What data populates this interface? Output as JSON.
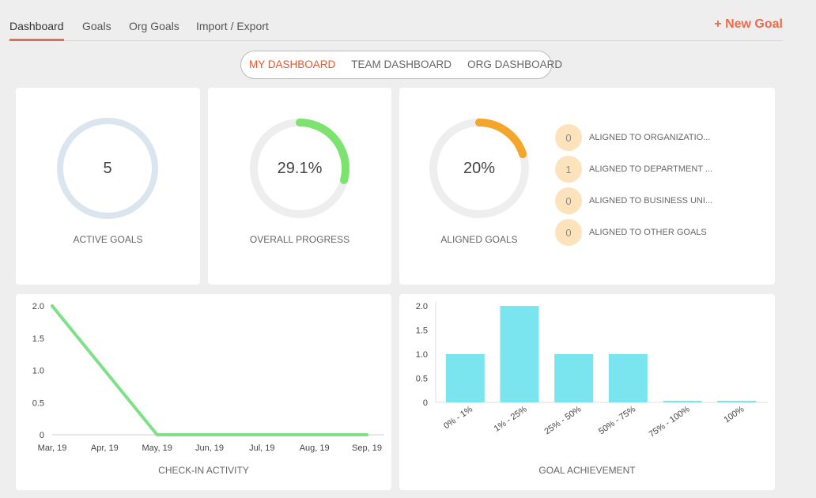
{
  "nav": {
    "tabs": [
      {
        "label": "Dashboard",
        "active": true
      },
      {
        "label": "Goals",
        "active": false
      },
      {
        "label": "Org Goals",
        "active": false
      },
      {
        "label": "Import / Export",
        "active": false
      }
    ],
    "new_goal": "+ New Goal"
  },
  "dashboard_switch": {
    "items": [
      "MY DASHBOARD",
      "TEAM DASHBOARD",
      "ORG DASHBOARD"
    ],
    "active": "MY DASHBOARD"
  },
  "active_goals": {
    "value": "5",
    "label": "ACTIVE GOALS"
  },
  "overall_progress": {
    "value": "29.1%",
    "fraction": 0.291,
    "label": "OVERALL PROGRESS",
    "color": "#7ce36f"
  },
  "aligned_goals": {
    "value": "20%",
    "fraction": 0.2,
    "label": "ALIGNED GOALS",
    "color": "#f5a52a",
    "items": [
      {
        "count": "0",
        "label": "ALIGNED TO ORGANIZATIO..."
      },
      {
        "count": "1",
        "label": "ALIGNED TO DEPARTMENT ..."
      },
      {
        "count": "0",
        "label": "ALIGNED TO BUSINESS UNI..."
      },
      {
        "count": "0",
        "label": "ALIGNED TO OTHER GOALS"
      }
    ]
  },
  "colors": {
    "accent": "#ee6a4c",
    "ring_track": "#eeeeee",
    "active_ring": "#dbe5ef",
    "line": "#7ee087",
    "bar": "#7ae5ee"
  },
  "chart_data": [
    {
      "type": "line",
      "xlabel": "CHECK-IN ACTIVITY",
      "categories": [
        "Mar, 19",
        "Apr, 19",
        "May, 19",
        "Jun, 19",
        "Jul, 19",
        "Aug, 19",
        "Sep, 19"
      ],
      "values": [
        2,
        1,
        0,
        0,
        0,
        0,
        0
      ],
      "ylim": [
        0,
        2
      ],
      "yticks": [
        "0",
        "0.5",
        "1.0",
        "1.5",
        "2.0"
      ],
      "ytick_values": [
        0,
        0.5,
        1,
        1.5,
        2
      ]
    },
    {
      "type": "bar",
      "xlabel": "GOAL ACHIEVEMENT",
      "categories": [
        "0% - 1%",
        "1% - 25%",
        "25% - 50%",
        "50% - 75%",
        "75% - 100%",
        "100%"
      ],
      "values": [
        1,
        2,
        1,
        1,
        0,
        0
      ],
      "ylim": [
        0,
        2
      ],
      "yticks": [
        "0",
        "0.5",
        "1.0",
        "1.5",
        "2.0"
      ],
      "ytick_values": [
        0,
        0.5,
        1,
        1.5,
        2
      ]
    }
  ]
}
